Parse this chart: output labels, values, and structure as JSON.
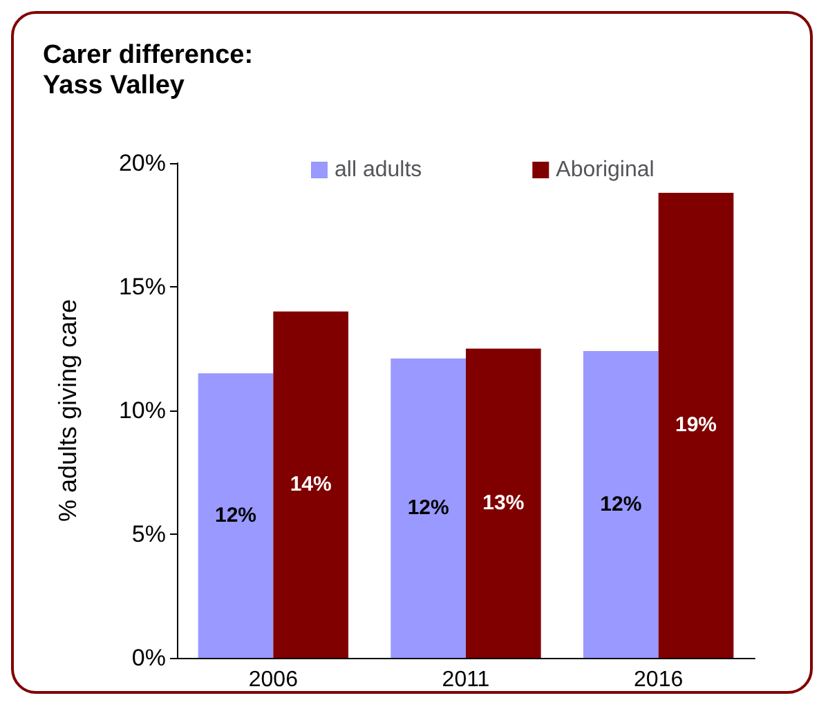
{
  "chart_data": {
    "type": "bar",
    "title": "Carer difference:\nYass Valley",
    "ylabel": "% adults giving care",
    "categories": [
      "2006",
      "2011",
      "2016"
    ],
    "series": [
      {
        "name": "all adults",
        "color": "#9999ff",
        "values": [
          11.5,
          12.1,
          12.4
        ],
        "value_labels": [
          "12%",
          "12%",
          "12%"
        ]
      },
      {
        "name": "Aboriginal",
        "color": "#800000",
        "values": [
          14.0,
          12.5,
          18.8
        ],
        "value_labels": [
          "14%",
          "13%",
          "19%"
        ]
      }
    ],
    "ylim": [
      0,
      20
    ],
    "yticks": [
      {
        "value": 0,
        "label": "0%"
      },
      {
        "value": 5,
        "label": "5%"
      },
      {
        "value": 10,
        "label": "10%"
      },
      {
        "value": 15,
        "label": "15%"
      },
      {
        "value": 20,
        "label": "20%"
      }
    ],
    "grid": false,
    "legend": "top"
  }
}
